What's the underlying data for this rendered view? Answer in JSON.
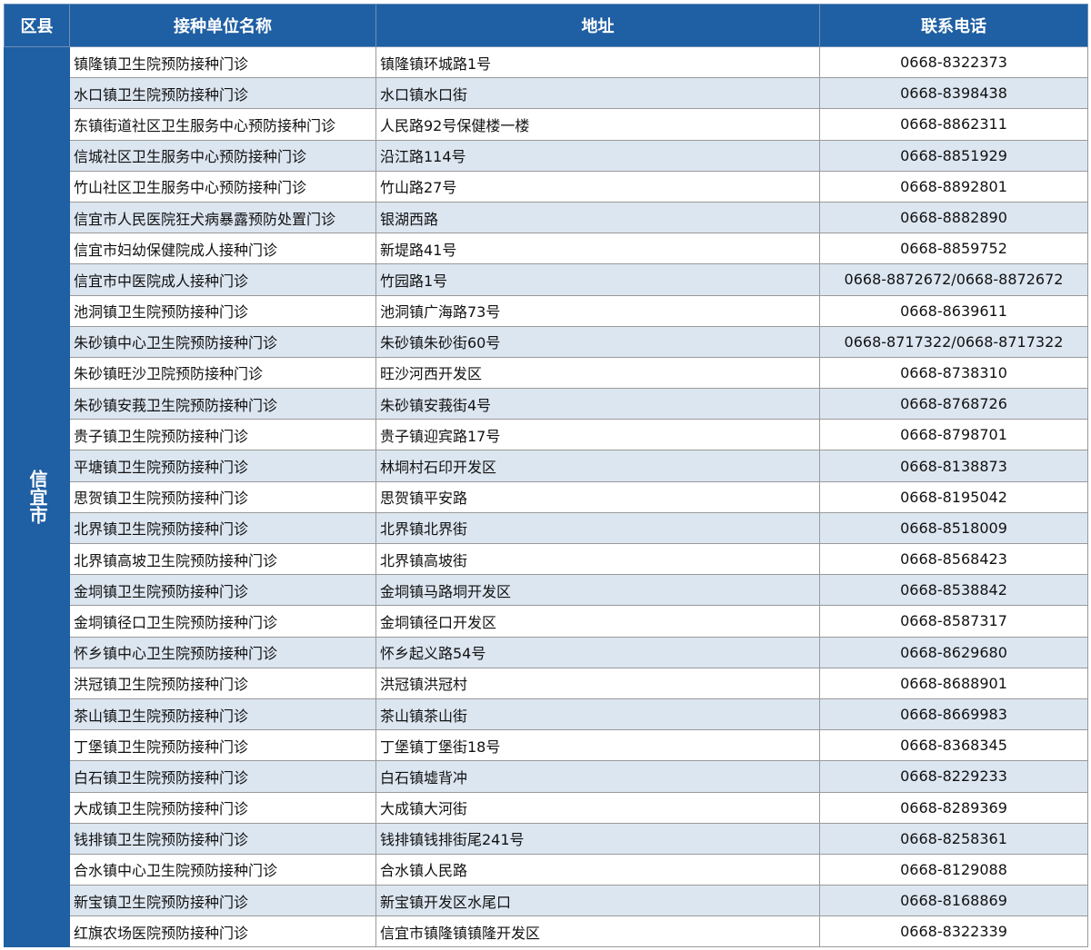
{
  "colors": {
    "header_bg": "#1f5fa3",
    "alt_row_bg": "#dce6f1"
  },
  "headers": {
    "district": "区县",
    "name": "接种单位名称",
    "address": "地址",
    "phone": "联系电话"
  },
  "district": "信宜市",
  "rows": [
    {
      "name": "镇隆镇卫生院预防接种门诊",
      "address": "镇隆镇环城路1号",
      "phone": "0668-8322373"
    },
    {
      "name": "水口镇卫生院预防接种门诊",
      "address": "水口镇水口街",
      "phone": "0668-8398438"
    },
    {
      "name": "东镇街道社区卫生服务中心预防接种门诊",
      "address": "人民路92号保健楼一楼",
      "phone": "0668-8862311"
    },
    {
      "name": "信城社区卫生服务中心预防接种门诊",
      "address": "沿江路114号",
      "phone": "0668-8851929"
    },
    {
      "name": "竹山社区卫生服务中心预防接种门诊",
      "address": "竹山路27号",
      "phone": "0668-8892801"
    },
    {
      "name": "信宜市人民医院狂犬病暴露预防处置门诊",
      "address": "银湖西路",
      "phone": "0668-8882890"
    },
    {
      "name": "信宜市妇幼保健院成人接种门诊",
      "address": "新堤路41号",
      "phone": "0668-8859752"
    },
    {
      "name": "信宜市中医院成人接种门诊",
      "address": "竹园路1号",
      "phone": "0668-8872672/0668-8872672"
    },
    {
      "name": "池洞镇卫生院预防接种门诊",
      "address": "池洞镇广海路73号",
      "phone": "0668-8639611"
    },
    {
      "name": "朱砂镇中心卫生院预防接种门诊",
      "address": "朱砂镇朱砂街60号",
      "phone": "0668-8717322/0668-8717322"
    },
    {
      "name": "朱砂镇旺沙卫院预防接种门诊",
      "address": "旺沙河西开发区",
      "phone": "0668-8738310"
    },
    {
      "name": "朱砂镇安莪卫生院预防接种门诊",
      "address": "朱砂镇安莪街4号",
      "phone": "0668-8768726"
    },
    {
      "name": "贵子镇卫生院预防接种门诊",
      "address": "贵子镇迎宾路17号",
      "phone": "0668-8798701"
    },
    {
      "name": "平塘镇卫生院预防接种门诊",
      "address": "林垌村石印开发区",
      "phone": "0668-8138873"
    },
    {
      "name": "思贺镇卫生院预防接种门诊",
      "address": "思贺镇平安路",
      "phone": "0668-8195042"
    },
    {
      "name": "北界镇卫生院预防接种门诊",
      "address": "北界镇北界街",
      "phone": "0668-8518009"
    },
    {
      "name": "北界镇高坡卫生院预防接种门诊",
      "address": "北界镇高坡街",
      "phone": "0668-8568423"
    },
    {
      "name": "金垌镇卫生院预防接种门诊",
      "address": "金垌镇马路垌开发区",
      "phone": "0668-8538842"
    },
    {
      "name": "金垌镇径口卫生院预防接种门诊",
      "address": "金垌镇径口开发区",
      "phone": "0668-8587317"
    },
    {
      "name": "怀乡镇中心卫生院预防接种门诊",
      "address": "怀乡起义路54号",
      "phone": "0668-8629680"
    },
    {
      "name": "洪冠镇卫生院预防接种门诊",
      "address": "洪冠镇洪冠村",
      "phone": "0668-8688901"
    },
    {
      "name": "茶山镇卫生院预防接种门诊",
      "address": "茶山镇茶山街",
      "phone": "0668-8669983"
    },
    {
      "name": "丁堡镇卫生院预防接种门诊",
      "address": "丁堡镇丁堡街18号",
      "phone": "0668-8368345"
    },
    {
      "name": "白石镇卫生院预防接种门诊",
      "address": "白石镇墟背冲",
      "phone": "0668-8229233"
    },
    {
      "name": "大成镇卫生院预防接种门诊",
      "address": "大成镇大河街",
      "phone": "0668-8289369"
    },
    {
      "name": "钱排镇卫生院预防接种门诊",
      "address": "钱排镇钱排街尾241号",
      "phone": "0668-8258361"
    },
    {
      "name": "合水镇中心卫生院预防接种门诊",
      "address": "合水镇人民路",
      "phone": "0668-8129088"
    },
    {
      "name": "新宝镇卫生院预防接种门诊",
      "address": "新宝镇开发区水尾口",
      "phone": "0668-8168869"
    },
    {
      "name": "红旗农场医院预防接种门诊",
      "address": "信宜市镇隆镇镇隆开发区",
      "phone": "0668-8322339"
    }
  ]
}
